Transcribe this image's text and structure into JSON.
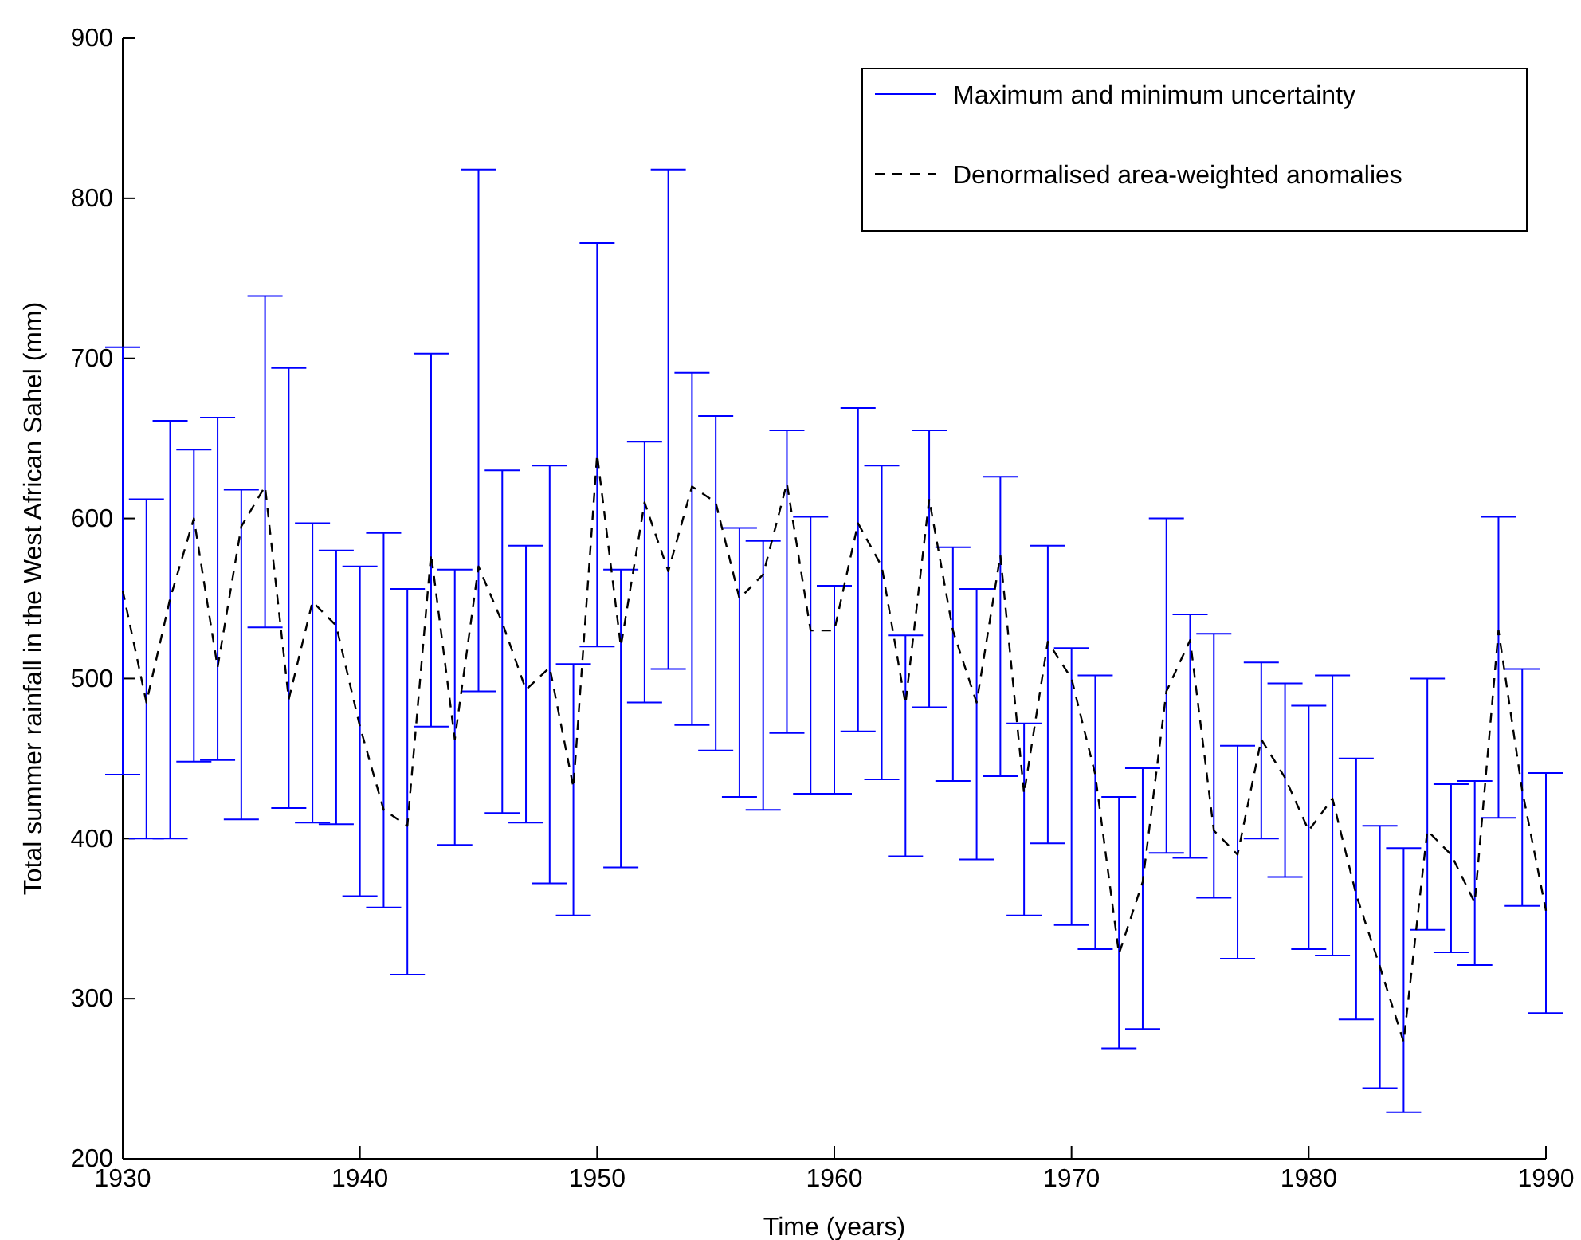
{
  "chart_data": {
    "type": "line",
    "xlabel": "Time (years)",
    "ylabel": "Total summer rainfall in the West African Sahel (mm)",
    "annotations": [
      "Maximum and minimum uncertainty"
    ],
    "x": [
      1930,
      1931,
      1932,
      1933,
      1934,
      1935,
      1936,
      1937,
      1938,
      1939,
      1940,
      1941,
      1942,
      1943,
      1944,
      1945,
      1946,
      1947,
      1948,
      1949,
      1950,
      1951,
      1952,
      1953,
      1954,
      1955,
      1956,
      1957,
      1958,
      1959,
      1960,
      1961,
      1962,
      1963,
      1964,
      1965,
      1966,
      1967,
      1968,
      1969,
      1970,
      1971,
      1972,
      1973,
      1974,
      1975,
      1976,
      1977,
      1978,
      1979,
      1980,
      1981,
      1982,
      1983,
      1984,
      1985,
      1986,
      1987,
      1988,
      1989,
      1990
    ],
    "series": [
      {
        "name": "Denormalised area-weighted anomalies",
        "line_style": "dashed",
        "color": "#000000",
        "values": [
          555,
          485,
          550,
          600,
          507,
          595,
          620,
          487,
          548,
          533,
          470,
          418,
          408,
          578,
          462,
          570,
          535,
          493,
          507,
          432,
          640,
          520,
          610,
          567,
          620,
          610,
          550,
          565,
          622,
          530,
          530,
          597,
          570,
          484,
          612,
          530,
          485,
          577,
          428,
          523,
          500,
          440,
          328,
          373,
          492,
          524,
          405,
          390,
          462,
          438,
          405,
          425,
          365,
          320,
          273,
          405,
          390,
          360,
          530,
          430,
          355
        ],
        "errors": [
          [
            440,
            707
          ],
          [
            400,
            612
          ],
          [
            400,
            661
          ],
          [
            448,
            643
          ],
          [
            449,
            663
          ],
          [
            412,
            618
          ],
          [
            532,
            739
          ],
          [
            419,
            694
          ],
          [
            410,
            597
          ],
          [
            409,
            580
          ],
          [
            364,
            570
          ],
          [
            357,
            591
          ],
          [
            315,
            556
          ],
          [
            470,
            703
          ],
          [
            396,
            568
          ],
          [
            492,
            818
          ],
          [
            416,
            630
          ],
          [
            410,
            583
          ],
          [
            372,
            633
          ],
          [
            352,
            509
          ],
          [
            520,
            772
          ],
          [
            382,
            568
          ],
          [
            485,
            648
          ],
          [
            506,
            818
          ],
          [
            471,
            691
          ],
          [
            455,
            664
          ],
          [
            426,
            594
          ],
          [
            418,
            586
          ],
          [
            466,
            655
          ],
          [
            428,
            601
          ],
          [
            428,
            558
          ],
          [
            467,
            669
          ],
          [
            437,
            633
          ],
          [
            389,
            527
          ],
          [
            482,
            655
          ],
          [
            436,
            582
          ],
          [
            387,
            556
          ],
          [
            439,
            626
          ],
          [
            352,
            472
          ],
          [
            397,
            583
          ],
          [
            346,
            519
          ],
          [
            331,
            502
          ],
          [
            269,
            426
          ],
          [
            281,
            444
          ],
          [
            391,
            600
          ],
          [
            388,
            540
          ],
          [
            363,
            528
          ],
          [
            325,
            458
          ],
          [
            400,
            510
          ],
          [
            376,
            497
          ],
          [
            331,
            483
          ],
          [
            327,
            502
          ],
          [
            287,
            450
          ],
          [
            244,
            408
          ],
          [
            229,
            394
          ],
          [
            343,
            500
          ],
          [
            329,
            434
          ],
          [
            321,
            436
          ],
          [
            413,
            601
          ],
          [
            358,
            506
          ],
          [
            291,
            441
          ]
        ]
      }
    ],
    "xlim": [
      1930,
      1990
    ],
    "xticks": [
      1930,
      1940,
      1950,
      1960,
      1970,
      1980,
      1990
    ],
    "ylim": [
      200,
      900
    ],
    "yticks": [
      200,
      300,
      400,
      500,
      600,
      700,
      800,
      900
    ],
    "grid": false,
    "legend": "top right"
  }
}
